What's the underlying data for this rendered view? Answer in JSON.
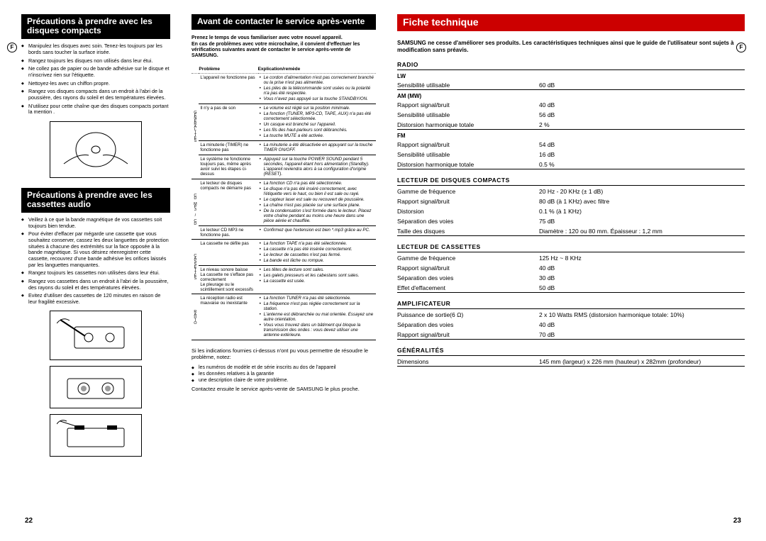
{
  "left": {
    "precautions_discs_title": "Précautions à prendre avec les disques compacts",
    "disc_bullets": [
      "Manipulez les disques avec soin. Tenez-les toujours par les bords sans toucher la surface irisée.",
      "Rangez toujours les disques non utilisés dans leur étui.",
      "Ne collez pas de papier ou de bande adhésive sur le disque et n'inscrivez rien sur l'étiquette.",
      "Nettoyez-les avec un chiffon propre.",
      "Rangez vos disques compacts dans un endroit à l'abri de la poussière, des rayons du soleil et des températures élevées.",
      "N'utilisez pour cette chaîne que des disques compacts portant la mention ."
    ],
    "precautions_cassettes_title": "Précautions à prendre avec les cassettes audio",
    "cassette_bullets": [
      "Veillez à ce que la bande magnétique de vos cassettes soit toujours bien tendue.",
      "Pour éviter d'effacer par mégarde une cassette que vous souhaitez conserver, cassez les deux languettes de protection situées à chacune des extrémités sur la face opposée à la bande magnétique. Si vous désirez réenregistrer cette cassette, recouvrez d'une bande adhésive les orifices laissés par les languettes manquantes.",
      "Rangez toujours les cassettes non utilisées dans leur étui.",
      "Rangez vos cassettes dans un endroit à l'abri de la poussière, des rayons du soleil et des températures élevées.",
      "Evitez d'utiliser des cassettes de 120 minutes en raison de leur fragilité excessive."
    ],
    "before_contact_title": "Avant de contacter le service après-vente",
    "intro": "Prenez le temps de vous familiariser avec votre nouvel appareil.\nEn cas de problèmes avec votre microchaîne, il convient d'effectuer les vérifications suivantes avant de contacter le service après-vente de SAMSUNG.",
    "table": {
      "col_problem": "Problème",
      "col_remedy": "Explication/remède",
      "cat_general": "GÉNÉRALITÉS",
      "cat_cd": "CD MP3 / CD",
      "cat_cassette": "CASSETTES",
      "cat_radio": "RADIO",
      "rows": [
        {
          "cat": "G",
          "prob": "L'appareil ne fonctionne pas",
          "rem": [
            "Le cordon d'alimentation n'est pas correctement branché ou la prise n'est pas alimentée.",
            "Les piles de la télécommande sont usées ou la polarité n'a pas été respectée.",
            "Vous n'avez pas appuyé sur la touche STANDBY/ON."
          ]
        },
        {
          "cat": "G",
          "prob": "Il n'y a pas de son",
          "rem": [
            "Le volume est réglé sur la position minimale.",
            "La fonction (TUNER, MP3-CD, TAPE, AUX) n'a pas été correctement sélectionnée.",
            "Un casque est branché sur l'appareil.",
            "Les fils des haut-parleurs sont débranchés.",
            "La touche MUTE a été activée."
          ]
        },
        {
          "cat": "G",
          "prob": "La minuterie (TIMER) ne fonctionne pas",
          "rem": [
            "La minuterie a été désactivée en appuyant sur la touche TIMER ON/OFF."
          ]
        },
        {
          "cat": "G",
          "prob": "Le système ne fonctionne toujours pas, même après avoir suivi les étapes ci-dessus",
          "rem": [
            "Appuyez sur la touche POWER SOUND pendant 5 secondes, l'appareil étant hors alimentation (Standby). L'appareil reviendra alors à sa configuration d'origine (RESET)."
          ]
        },
        {
          "cat": "C",
          "prob": "Le lecteur de disques compacts ne démarre pas",
          "rem": [
            "La fonction CD n'a pas été sélectionnée.",
            "Le disque n'a pas été inséré correctement, avec l'étiquette vers le haut, ou bien il est sale ou rayé.",
            "Le capteur laser est sale ou recouvert de poussière.",
            "La chaîne n'est pas placée sur une surface plane.",
            "De la condensation s'est formée dans le lecteur. Placez votre chaîne pendant au moins une heure dans une pièce aérée et chauffée."
          ]
        },
        {
          "cat": "C",
          "prob": "Le lecteur CD MP3 ne fonctionne pas.",
          "rem": [
            "Confirmez que l'extension est bien *.mp3 grâce au PC."
          ]
        },
        {
          "cat": "K",
          "prob": "La cassette ne défile pas",
          "rem": [
            "La fonction TAPE n'a pas été sélectionnée.",
            "La cassette n'a pas été insérée correctement.",
            "Le lecteur de cassettes n'est pas fermé.",
            "La bande est lâche ou rompue."
          ]
        },
        {
          "cat": "K",
          "prob": "Le niveau sonore baisse\nLa cassette ne s'efface pas correctement\nLe pleurage ou le scintillement sont excessifs",
          "rem": [
            "Les têtes de lecture sont sales.",
            "Les galets presseurs et les cabestans sont sales.",
            "La cassette est usée."
          ]
        },
        {
          "cat": "R",
          "prob": "La réception radio est mauvaise ou inexistante",
          "rem": [
            "La fonction TUNER n'a pas été sélectionnée.",
            "La fréquence n'est pas réglée correctement sur la station.",
            "L'antenne est débranchée ou mal orientée. Essayez une autre orientation.",
            "Vous vous trouvez dans un bâtiment qui bloque la transmission des ondes : vous devez utiliser une antenne extérieure."
          ]
        }
      ]
    },
    "outro_text": "Si les indications fournies ci-dessus n'ont pu vous permettre de résoudre le problème, notez:",
    "outro_bullets": [
      "les numéros de modèle et de série inscrits au dos de l'appareil",
      "les données relatives à la garantie",
      "une description claire de votre problème."
    ],
    "outro_contact": "Contactez ensuite le service après-vente de SAMSUNG le plus proche.",
    "page_num": "22"
  },
  "right": {
    "title": "Fiche technique",
    "intro": "SAMSUNG ne cesse d'améliorer ses produits. Les caractéristiques techniques ainsi que le guide de l'utilisateur sont sujets à modification sans préavis.",
    "sections": [
      {
        "title": "RADIO",
        "groups": [
          {
            "sub": "LW",
            "rows": [
              [
                "Sensibilité utilisable",
                "60 dB"
              ]
            ]
          },
          {
            "sub": "AM (MW)",
            "rows": [
              [
                "Rapport signal/bruit",
                "40 dB"
              ],
              [
                "Sensibilité utilisable",
                "56 dB"
              ],
              [
                "Distorsion harmonique totale",
                "2 %"
              ]
            ]
          },
          {
            "sub": "FM",
            "rows": [
              [
                "Rapport signal/bruit",
                "54 dB"
              ],
              [
                "Sensibilité utilisable",
                "16 dB"
              ],
              [
                "Distorsion harmonique totale",
                "0.5 %"
              ]
            ]
          }
        ]
      },
      {
        "title": "LECTEUR DE DISQUES COMPACTS",
        "groups": [
          {
            "sub": "",
            "rows": [
              [
                "Gamme de fréquence",
                "20 Hz - 20 KHz (± 1 dB)"
              ],
              [
                "Rapport signal/bruit",
                "80 dB (à 1 KHz) avec filtre"
              ],
              [
                "Distorsion",
                "0.1  % (à 1 KHz)"
              ],
              [
                "Séparation des voies",
                "75 dB"
              ],
              [
                "Taille des disques",
                "Diamètre : 120 ou 80  mm. Épaisseur : 1,2  mm"
              ]
            ]
          }
        ]
      },
      {
        "title": "LECTEUR DE CASSETTES",
        "groups": [
          {
            "sub": "",
            "rows": [
              [
                "Gamme de fréquence",
                "125 Hz ~ 8 KHz"
              ],
              [
                "Rapport signal/bruit",
                "40 dB"
              ],
              [
                "Séparation des voies",
                "30 dB"
              ],
              [
                "Effet d'effacement",
                "50 dB"
              ]
            ]
          }
        ]
      },
      {
        "title": "AMPLIFICATEUR",
        "groups": [
          {
            "sub": "",
            "rows": [
              [
                "Puissance de sortie(6 Ω)",
                "2 x 10 Watts RMS (distorsion harmonique totale: 10%)"
              ],
              [
                "Séparation des voies",
                "40 dB"
              ],
              [
                "Rapport signal/bruit",
                "70 dB"
              ]
            ]
          }
        ]
      },
      {
        "title": "GÉNÉRALITÉS",
        "groups": [
          {
            "sub": "",
            "rows": [
              [
                "Dimensions",
                "145  mm (largeur) x 226  mm (hauteur) x 282mm (profondeur)"
              ]
            ]
          }
        ]
      }
    ],
    "page_num": "23",
    "f_mark": "F"
  }
}
